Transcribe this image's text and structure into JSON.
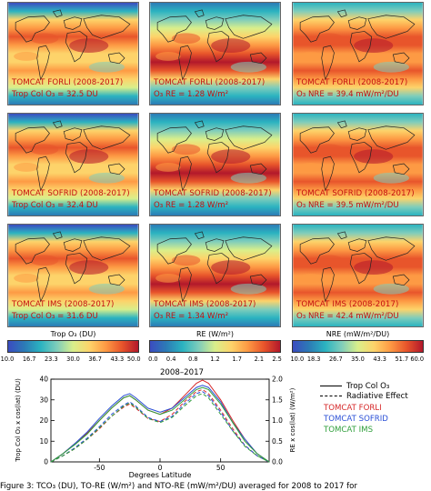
{
  "panels": [
    {
      "title": "TOMCAT FORLI (2008-2017)",
      "stat": "Trop Col O₃ = 32.5 DU",
      "kind": "tco"
    },
    {
      "title": "TOMCAT FORLI (2008-2017)",
      "stat": "O₃ RE = 1.28 W/m²",
      "kind": "re"
    },
    {
      "title": "TOMCAT FORLI (2008-2017)",
      "stat": "O₃ NRE = 39.4 mW/m²/DU",
      "kind": "nre"
    },
    {
      "title": "TOMCAT SOFRID (2008-2017)",
      "stat": "Trop Col O₃ = 32.4 DU",
      "kind": "tco"
    },
    {
      "title": "TOMCAT SOFRID (2008-2017)",
      "stat": "O₃ RE = 1.28 W/m²",
      "kind": "re"
    },
    {
      "title": "TOMCAT SOFRID (2008-2017)",
      "stat": "O₃ NRE = 39.5 mW/m²/DU",
      "kind": "nre"
    },
    {
      "title": "TOMCAT IMS (2008-2017)",
      "stat": "Trop Col O₃ = 31.6 DU",
      "kind": "tco"
    },
    {
      "title": "TOMCAT IMS (2008-2017)",
      "stat": "O₃ RE = 1.34 W/m²",
      "kind": "re"
    },
    {
      "title": "TOMCAT IMS (2008-2017)",
      "stat": "O₃ NRE = 42.4 mW/m²/DU",
      "kind": "nre"
    }
  ],
  "colorbars": [
    {
      "label": "Trop O₃ (DU)",
      "ticks": [
        "10.0",
        "16.7",
        "23.3",
        "30.0",
        "36.7",
        "43.3",
        "50.0"
      ]
    },
    {
      "label": "RE (W/m²)",
      "ticks": [
        "0.0",
        "0.4",
        "0.8",
        "1.2",
        "1.7",
        "2.1",
        "2.5"
      ]
    },
    {
      "label": "NRE (mW/m²/DU)",
      "ticks": [
        "10.0",
        "18.3",
        "26.7",
        "35.0",
        "43.3",
        "51.7",
        "60.0"
      ]
    }
  ],
  "colors": {
    "scale": [
      "#3b4cc0",
      "#2c7bb6",
      "#2bb3c0",
      "#7fcdbb",
      "#d9ef8b",
      "#fdd36a",
      "#fd9a44",
      "#e8552b",
      "#b2182b"
    ],
    "forli": "#d62728",
    "sofrid": "#2a4fd6",
    "ims": "#2e9e3a",
    "land": "#222222"
  },
  "chart_data": {
    "type": "line",
    "title": "2008–2017",
    "xlabel": "Degrees Latitude",
    "ylabel": "Trop Col O₃ x cos(lat) (DU)",
    "ylabel_right": "RE x cos(lat) (W/m²)",
    "xlim": [
      -90,
      90
    ],
    "ylim": [
      0,
      40
    ],
    "ylim_right": [
      0,
      2
    ],
    "x_ticks": [
      "-50",
      "0",
      "50"
    ],
    "y_ticks": [
      "0",
      "10",
      "20",
      "30",
      "40"
    ],
    "y_ticks_right": [
      "0.0",
      "0.5",
      "1.0",
      "1.5",
      "2.0"
    ],
    "x": [
      -90,
      -80,
      -70,
      -60,
      -50,
      -40,
      -30,
      -25,
      -20,
      -10,
      0,
      10,
      20,
      30,
      35,
      40,
      50,
      60,
      70,
      80,
      90
    ],
    "series": [
      {
        "name": "TOMCAT FORLI",
        "style": "solid",
        "color": "#d62728",
        "values": [
          0,
          4,
          9,
          14,
          20,
          26,
          31,
          32,
          30,
          25,
          23,
          26,
          32,
          38,
          39.5,
          38,
          30,
          20,
          11,
          4,
          0
        ]
      },
      {
        "name": "TOMCAT FORLI",
        "style": "dashed",
        "color": "#d62728",
        "values": [
          0,
          3,
          6.5,
          11,
          16,
          22,
          26.5,
          28,
          26,
          21,
          19.5,
          23,
          29,
          34,
          35,
          33,
          25,
          16,
          8,
          3,
          0
        ]
      },
      {
        "name": "TOMCAT SOFRID",
        "style": "solid",
        "color": "#2a4fd6",
        "values": [
          0,
          4,
          9,
          14.5,
          21,
          27,
          32,
          33,
          31,
          26,
          24,
          26,
          31,
          36,
          37,
          36,
          29,
          19,
          11,
          4,
          0
        ]
      },
      {
        "name": "TOMCAT SOFRID",
        "style": "dashed",
        "color": "#2a4fd6",
        "values": [
          0,
          3,
          7,
          11.5,
          17,
          23,
          27.5,
          29,
          27,
          21.5,
          19.5,
          22,
          28,
          33,
          34,
          32,
          24,
          15,
          8,
          3,
          0
        ]
      },
      {
        "name": "TOMCAT IMS",
        "style": "solid",
        "color": "#2e9e3a",
        "values": [
          0,
          4,
          8.5,
          13.5,
          20,
          26,
          31,
          32,
          30,
          25,
          23,
          25,
          30,
          35,
          36,
          35,
          28,
          19,
          10,
          4,
          0
        ]
      },
      {
        "name": "TOMCAT IMS",
        "style": "dashed",
        "color": "#2e9e3a",
        "values": [
          0,
          3,
          6.5,
          11,
          16.5,
          22,
          27,
          28.5,
          26.5,
          21,
          19,
          21.5,
          27,
          32,
          33,
          31,
          23,
          15,
          7.5,
          3,
          0
        ]
      }
    ],
    "legend": [
      {
        "label": "Trop Col O₃",
        "style": "solid",
        "color": "#000000"
      },
      {
        "label": "Radiative Effect",
        "style": "dashed",
        "color": "#000000"
      },
      {
        "label": "TOMCAT FORLI",
        "style": "text",
        "color": "#d62728"
      },
      {
        "label": "TOMCAT SOFRID",
        "style": "text",
        "color": "#2a4fd6"
      },
      {
        "label": "TOMCAT IMS",
        "style": "text",
        "color": "#2e9e3a"
      }
    ]
  },
  "caption": "Figure 3: TCO₃ (DU), TO-RE (W/m²) and NTO-RE (mW/m²/DU) averaged for 2008 to 2017 for"
}
